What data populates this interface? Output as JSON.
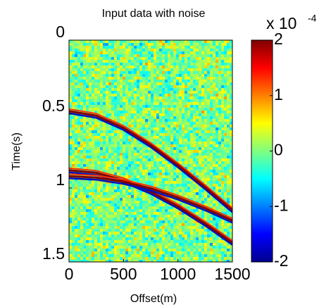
{
  "chart_data": {
    "type": "seismic",
    "title": "Input data with noise",
    "x_label": "Offset(m)",
    "y_label": "Time(s)",
    "xlim": [
      0,
      1500
    ],
    "xticks": [
      0,
      500,
      1000,
      1500
    ],
    "ylim": [
      0,
      1.5
    ],
    "yticks": [
      0,
      0.5,
      1,
      1.5
    ],
    "y_reversed": true,
    "x": [
      0,
      250,
      500,
      750,
      1000,
      1250,
      1500
    ],
    "series": [
      {
        "values": [
          0.48,
          0.511,
          0.593,
          0.709,
          0.846,
          0.994,
          1.15
        ]
      },
      {
        "values": [
          0.88,
          0.897,
          0.947,
          1.025,
          1.124,
          1.241,
          1.37
        ]
      },
      {
        "values": [
          0.92,
          0.93,
          0.958,
          1.003,
          1.064,
          1.137,
          1.22
        ]
      }
    ],
    "colormap": "jet",
    "clim": [
      -2,
      2
    ],
    "cticks": [
      -2,
      -1,
      0,
      1,
      2
    ],
    "colorbar_multiplier": "x 10",
    "colorbar_exponent": "-4"
  }
}
